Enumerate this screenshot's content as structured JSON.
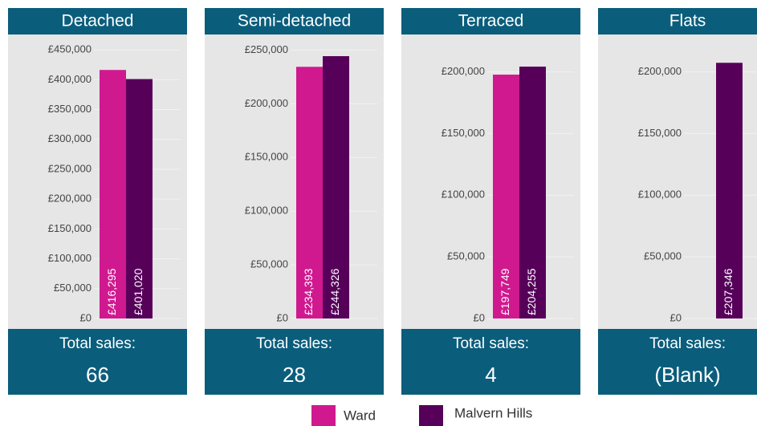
{
  "chart_data": [
    {
      "type": "bar",
      "title": "Detached",
      "series": [
        {
          "name": "Ward",
          "color": "#d0198f",
          "values": [
            416295
          ],
          "value_labels": [
            "£416,295"
          ]
        },
        {
          "name": "Malvern Hills",
          "color": "#56005a",
          "values": [
            401020
          ],
          "value_labels": [
            "£401,020"
          ]
        }
      ],
      "ylim": [
        0,
        473000
      ],
      "yticks": [
        {
          "value": 0,
          "label": "£0"
        },
        {
          "value": 50000,
          "label": "£50,000"
        },
        {
          "value": 100000,
          "label": "£100,000"
        },
        {
          "value": 150000,
          "label": "£150,000"
        },
        {
          "value": 200000,
          "label": "£200,000"
        },
        {
          "value": 250000,
          "label": "£250,000"
        },
        {
          "value": 300000,
          "label": "£300,000"
        },
        {
          "value": 350000,
          "label": "£350,000"
        },
        {
          "value": 400000,
          "label": "£400,000"
        },
        {
          "value": 450000,
          "label": "£450,000"
        }
      ],
      "grid": true,
      "total_label": "Total sales:",
      "total": "66"
    },
    {
      "type": "bar",
      "title": "Semi-detached",
      "series": [
        {
          "name": "Ward",
          "color": "#d0198f",
          "values": [
            234393
          ],
          "value_labels": [
            "£234,393"
          ]
        },
        {
          "name": "Malvern Hills",
          "color": "#56005a",
          "values": [
            244326
          ],
          "value_labels": [
            "£244,326"
          ]
        }
      ],
      "ylim": [
        0,
        263000
      ],
      "yticks": [
        {
          "value": 0,
          "label": "£0"
        },
        {
          "value": 50000,
          "label": "£50,000"
        },
        {
          "value": 100000,
          "label": "£100,000"
        },
        {
          "value": 150000,
          "label": "£150,000"
        },
        {
          "value": 200000,
          "label": "£200,000"
        },
        {
          "value": 250000,
          "label": "£250,000"
        }
      ],
      "grid": true,
      "total_label": "Total sales:",
      "total": "28"
    },
    {
      "type": "bar",
      "title": "Terraced",
      "series": [
        {
          "name": "Ward",
          "color": "#d0198f",
          "values": [
            197749
          ],
          "value_labels": [
            "£197,749"
          ]
        },
        {
          "name": "Malvern Hills",
          "color": "#56005a",
          "values": [
            204255
          ],
          "value_labels": [
            "£204,255"
          ]
        }
      ],
      "ylim": [
        0,
        229000
      ],
      "yticks": [
        {
          "value": 0,
          "label": "£0"
        },
        {
          "value": 50000,
          "label": "£50,000"
        },
        {
          "value": 100000,
          "label": "£100,000"
        },
        {
          "value": 150000,
          "label": "£150,000"
        },
        {
          "value": 200000,
          "label": "£200,000"
        }
      ],
      "grid": true,
      "total_label": "Total sales:",
      "total": "4"
    },
    {
      "type": "bar",
      "title": "Flats",
      "series": [
        {
          "name": "Ward",
          "color": "#d0198f",
          "values": [
            null
          ],
          "value_labels": [
            null
          ]
        },
        {
          "name": "Malvern Hills",
          "color": "#56005a",
          "values": [
            207346
          ],
          "value_labels": [
            "£207,346"
          ]
        }
      ],
      "ylim": [
        0,
        229000
      ],
      "yticks": [
        {
          "value": 0,
          "label": "£0"
        },
        {
          "value": 50000,
          "label": "£50,000"
        },
        {
          "value": 100000,
          "label": "£100,000"
        },
        {
          "value": 150000,
          "label": "£150,000"
        },
        {
          "value": 200000,
          "label": "£200,000"
        }
      ],
      "grid": true,
      "total_label": "Total sales:",
      "total": "(Blank)"
    }
  ]
}
